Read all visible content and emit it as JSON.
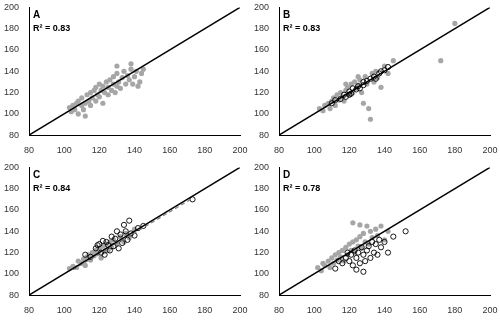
{
  "chart_data": [
    {
      "type": "scatter",
      "title": "A",
      "annotation": "R² = 0.83",
      "xlim": [
        80,
        200
      ],
      "ylim": [
        80,
        200
      ],
      "xticks": [
        80,
        100,
        120,
        140,
        160,
        180,
        200
      ],
      "yticks": [
        80,
        100,
        120,
        140,
        160,
        180,
        200
      ],
      "grid": false,
      "series": [
        {
          "type": "line",
          "color": "#000000",
          "line_style": "solid",
          "x": [
            80,
            200
          ],
          "values": [
            80,
            200
          ]
        },
        {
          "color": "#a6a6a6",
          "marker": "circle",
          "x": [
            103,
            104,
            105,
            106,
            107,
            108,
            108,
            110,
            110,
            111,
            112,
            113,
            114,
            115,
            115,
            116,
            117,
            118,
            118,
            119,
            120,
            120,
            121,
            122,
            122,
            123,
            124,
            125,
            125,
            126,
            127,
            128,
            128,
            129,
            130,
            130,
            131,
            132,
            133,
            134,
            135,
            136,
            137,
            138,
            139,
            140,
            141,
            143,
            144,
            145,
            112,
            130,
            138,
            142
          ],
          "values": [
            106,
            102,
            108,
            104,
            110,
            100,
            112,
            108,
            115,
            104,
            110,
            118,
            112,
            108,
            120,
            115,
            122,
            112,
            125,
            118,
            116,
            128,
            122,
            110,
            126,
            120,
            130,
            118,
            125,
            132,
            122,
            128,
            135,
            120,
            126,
            138,
            130,
            124,
            134,
            140,
            128,
            136,
            132,
            142,
            128,
            135,
            140,
            130,
            138,
            142,
            98,
            145,
            147,
            126
          ]
        }
      ]
    },
    {
      "type": "scatter",
      "title": "B",
      "annotation": "R² = 0.83",
      "xlim": [
        80,
        200
      ],
      "ylim": [
        80,
        200
      ],
      "xticks": [
        80,
        100,
        120,
        140,
        160,
        180,
        200
      ],
      "yticks": [
        80,
        100,
        120,
        140,
        160,
        180,
        200
      ],
      "grid": false,
      "series": [
        {
          "type": "line",
          "color": "#000000",
          "line_style": "solid",
          "x": [
            80,
            200
          ],
          "values": [
            80,
            200
          ]
        },
        {
          "color": "#a6a6a6",
          "marker": "circle",
          "x": [
            103,
            105,
            106,
            108,
            109,
            110,
            111,
            112,
            113,
            114,
            115,
            116,
            117,
            118,
            119,
            120,
            121,
            122,
            123,
            124,
            125,
            126,
            127,
            128,
            129,
            130,
            131,
            132,
            133,
            134,
            135,
            136,
            138,
            140,
            142,
            145,
            172,
            180,
            125,
            118
          ],
          "values": [
            105,
            103,
            108,
            110,
            105,
            112,
            115,
            108,
            118,
            113,
            120,
            116,
            112,
            122,
            125,
            118,
            128,
            120,
            130,
            124,
            127,
            132,
            120,
            110,
            135,
            128,
            105,
            95,
            138,
            130,
            140,
            134,
            125,
            145,
            138,
            150,
            150,
            185,
            135,
            128
          ]
        },
        {
          "color": "#000000",
          "marker": "open_circle",
          "x": [
            110,
            112,
            115,
            117,
            118,
            120,
            121,
            122,
            124,
            125,
            126,
            128,
            130,
            132,
            134,
            135,
            137,
            138,
            140,
            142,
            128,
            120
          ],
          "values": [
            110,
            113,
            114,
            118,
            116,
            121,
            119,
            124,
            123,
            126,
            124,
            130,
            131,
            133,
            135,
            133,
            138,
            140,
            141,
            144,
            127,
            118
          ]
        }
      ]
    },
    {
      "type": "scatter",
      "title": "C",
      "annotation": "R² = 0.84",
      "xlim": [
        80,
        200
      ],
      "ylim": [
        80,
        200
      ],
      "xticks": [
        80,
        100,
        120,
        140,
        160,
        180,
        200
      ],
      "yticks": [
        80,
        100,
        120,
        140,
        160,
        180,
        200
      ],
      "grid": false,
      "series": [
        {
          "type": "line",
          "color": "#000000",
          "line_style": "solid",
          "x": [
            80,
            200
          ],
          "values": [
            80,
            200
          ]
        },
        {
          "type": "line",
          "color": "#808080",
          "line_style": "dashed",
          "x": [
            105,
            173
          ],
          "values": [
            104,
            171
          ]
        },
        {
          "color": "#a6a6a6",
          "marker": "circle",
          "x": [
            103,
            105,
            107,
            108,
            110,
            111,
            112,
            113,
            114,
            115,
            116,
            117,
            118,
            119,
            120,
            121,
            122,
            123,
            124,
            125,
            126,
            127,
            128,
            130,
            132,
            134,
            135,
            137,
            140
          ],
          "values": [
            105,
            107,
            106,
            112,
            110,
            114,
            108,
            116,
            118,
            113,
            120,
            117,
            122,
            119,
            124,
            115,
            126,
            121,
            128,
            122,
            130,
            125,
            132,
            128,
            135,
            130,
            138,
            134,
            142
          ]
        },
        {
          "color": "#000000",
          "marker": "open_circle",
          "x": [
            112,
            115,
            118,
            120,
            121,
            123,
            124,
            125,
            126,
            127,
            128,
            129,
            130,
            131,
            132,
            133,
            134,
            135,
            136,
            137,
            138,
            140,
            142,
            145,
            173,
            119,
            122
          ],
          "values": [
            118,
            116,
            124,
            128,
            120,
            118,
            130,
            127,
            122,
            135,
            126,
            133,
            140,
            124,
            137,
            129,
            146,
            140,
            132,
            150,
            138,
            136,
            143,
            145,
            170,
            127,
            131
          ]
        }
      ]
    },
    {
      "type": "scatter",
      "title": "D",
      "annotation": "R² = 0.78",
      "xlim": [
        80,
        200
      ],
      "ylim": [
        80,
        200
      ],
      "xticks": [
        80,
        100,
        120,
        140,
        160,
        180,
        200
      ],
      "yticks": [
        80,
        100,
        120,
        140,
        160,
        180,
        200
      ],
      "grid": false,
      "series": [
        {
          "type": "line",
          "color": "#000000",
          "line_style": "solid",
          "x": [
            80,
            200
          ],
          "values": [
            80,
            200
          ]
        },
        {
          "color": "#a6a6a6",
          "marker": "circle",
          "x": [
            102,
            104,
            105,
            106,
            108,
            109,
            110,
            111,
            112,
            113,
            114,
            115,
            116,
            117,
            118,
            119,
            120,
            121,
            122,
            123,
            124,
            125,
            126,
            127,
            128,
            129,
            130,
            131,
            132,
            133,
            135,
            136,
            138,
            140,
            142,
            122,
            126
          ],
          "values": [
            106,
            103,
            110,
            108,
            112,
            106,
            115,
            110,
            118,
            113,
            120,
            116,
            122,
            112,
            125,
            118,
            128,
            122,
            130,
            120,
            132,
            126,
            135,
            124,
            138,
            130,
            145,
            128,
            140,
            134,
            142,
            136,
            145,
            132,
            140,
            148,
            146
          ]
        },
        {
          "color": "#000000",
          "marker": "open_circle",
          "x": [
            112,
            114,
            116,
            118,
            119,
            120,
            121,
            122,
            123,
            124,
            125,
            126,
            127,
            128,
            129,
            130,
            131,
            132,
            133,
            134,
            135,
            136,
            137,
            138,
            140,
            142,
            145,
            152,
            128,
            124
          ],
          "values": [
            105,
            112,
            110,
            115,
            120,
            112,
            118,
            108,
            122,
            115,
            120,
            110,
            125,
            118,
            112,
            122,
            126,
            115,
            130,
            120,
            128,
            118,
            132,
            125,
            130,
            120,
            135,
            140,
            102,
            104
          ]
        }
      ]
    }
  ]
}
